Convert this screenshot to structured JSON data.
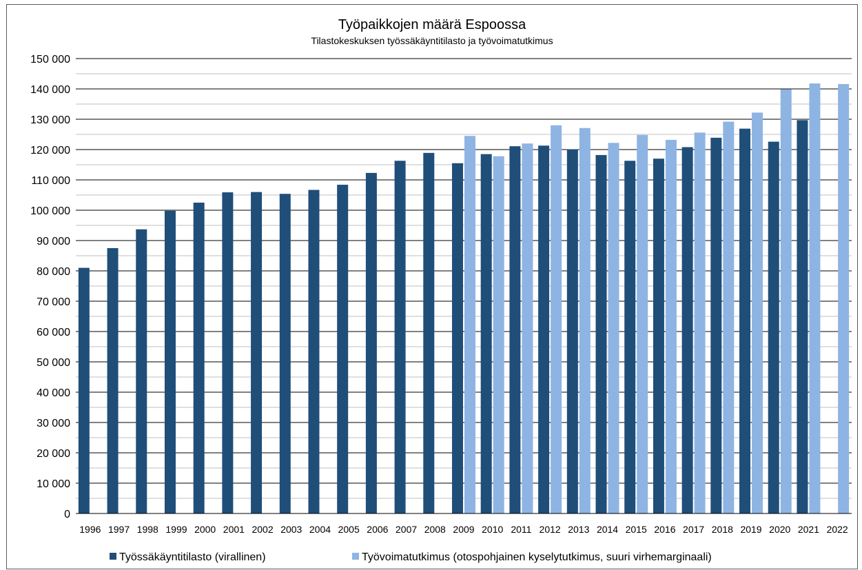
{
  "chart_data": {
    "type": "bar",
    "title": "Työpaikkojen määrä Espoossa",
    "subtitle": "Tilastokeskuksen työssäkäyntitilasto ja työvoimatutkimus",
    "xlabel": "",
    "ylabel": "",
    "ylim": [
      0,
      150000
    ],
    "y_ticks": [
      "0",
      "10 000",
      "20 000",
      "30 000",
      "40 000",
      "50 000",
      "60 000",
      "70 000",
      "80 000",
      "90 000",
      "100 000",
      "110 000",
      "120 000",
      "130 000",
      "140 000",
      "150 000"
    ],
    "grid": true,
    "legend_position": "bottom",
    "categories": [
      "1996",
      "1997",
      "1998",
      "1999",
      "2000",
      "2001",
      "2002",
      "2003",
      "2004",
      "2005",
      "2006",
      "2007",
      "2008",
      "2009",
      "2010",
      "2011",
      "2012",
      "2013",
      "2014",
      "2015",
      "2016",
      "2017",
      "2018",
      "2019",
      "2020",
      "2021",
      "2022"
    ],
    "series": [
      {
        "name": "Työssäkäyntitilasto (virallinen)",
        "color": "#1f4e79",
        "values": [
          81000,
          87500,
          93700,
          99800,
          102500,
          105900,
          106000,
          105400,
          106700,
          108400,
          112300,
          116300,
          118900,
          115500,
          118500,
          121100,
          121300,
          120100,
          118200,
          116300,
          117000,
          120800,
          123900,
          126900,
          122600,
          129700,
          null
        ]
      },
      {
        "name": "Työvoimatutkimus (otospohjainen kyselytutkimus, suuri virhemarginaali)",
        "color": "#8eb4e3",
        "values": [
          null,
          null,
          null,
          null,
          null,
          null,
          null,
          null,
          null,
          null,
          null,
          null,
          null,
          124500,
          117800,
          122000,
          128000,
          127100,
          122200,
          124800,
          123200,
          125600,
          129200,
          132200,
          139900,
          141800,
          141600
        ]
      }
    ]
  }
}
